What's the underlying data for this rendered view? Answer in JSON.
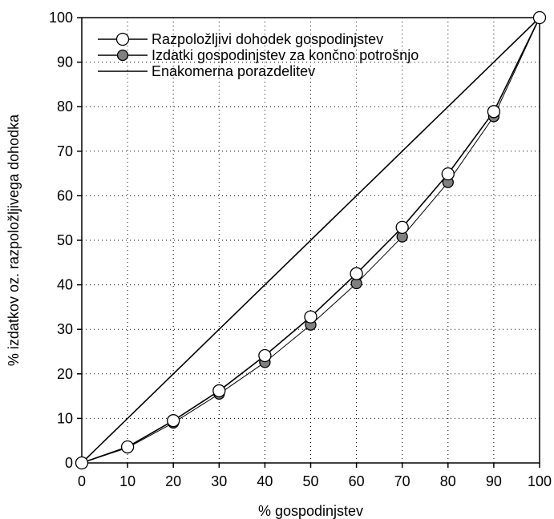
{
  "chart_data": {
    "type": "line",
    "xlabel": "% gospodinjstev",
    "ylabel": "% izdatkov oz. razpoložljivega dohodka",
    "xlim": [
      0,
      100
    ],
    "ylim": [
      0,
      100
    ],
    "x_ticks": [
      "0",
      "10",
      "20",
      "30",
      "40",
      "50",
      "60",
      "70",
      "80",
      "90",
      "100"
    ],
    "y_ticks": [
      "0",
      "10",
      "20",
      "30",
      "40",
      "50",
      "60",
      "70",
      "80",
      "90",
      "100"
    ],
    "grid": "dotted",
    "legend_position": "top-left",
    "x": [
      0,
      10,
      20,
      30,
      40,
      50,
      60,
      70,
      80,
      90,
      100
    ],
    "series": [
      {
        "name": "Razpoložljivi dohodek gospodinjstev",
        "marker": "open-circle",
        "color": "#000000",
        "fill": "#ffffff",
        "values": [
          0,
          3.6,
          9.5,
          16.2,
          24.1,
          32.8,
          42.5,
          52.9,
          64.9,
          78.9,
          100
        ]
      },
      {
        "name": "Izdatki gospodinjstev za končno potrošnjo",
        "marker": "filled-circle",
        "color": "#000000",
        "fill": "#808080",
        "values": [
          0,
          3.4,
          9.0,
          15.5,
          22.6,
          31.0,
          40.3,
          50.8,
          63.0,
          77.8,
          100
        ]
      },
      {
        "name": "Enakomerna porazdelitev",
        "marker": "none",
        "color": "#000000",
        "values": [
          0,
          10,
          20,
          30,
          40,
          50,
          60,
          70,
          80,
          90,
          100
        ]
      }
    ]
  }
}
